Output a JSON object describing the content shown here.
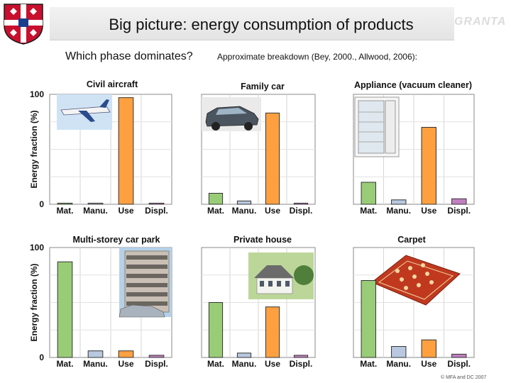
{
  "slide": {
    "title": "Big picture: energy consumption of products",
    "brand": "GRANTA",
    "question": "Which phase dominates?",
    "note": "Approximate breakdown  (Bey, 2000., Allwood, 2006):",
    "copyright": "© MFA  and DC 2007"
  },
  "colors": {
    "mat": "#99cc77",
    "manu": "#b9c8e0",
    "use": "#ffa040",
    "displ": "#c080c0"
  },
  "icons": [
    "university-crest-icon",
    "aircraft-photo",
    "car-photo",
    "refrigerator-photo",
    "car-park-photo",
    "house-photo",
    "carpet-photo"
  ],
  "chart_data": [
    {
      "type": "bar",
      "title": "Civil aircraft",
      "categories": [
        "Mat.",
        "Manu.",
        "Use",
        "Displ."
      ],
      "values": [
        1,
        1,
        97,
        1
      ],
      "ylabel": "Energy fraction (%)",
      "ylim": [
        0,
        100
      ],
      "yticks": [
        "0",
        "100"
      ],
      "grid": true
    },
    {
      "type": "bar",
      "title": "Family car",
      "categories": [
        "Mat.",
        "Manu.",
        "Use",
        "Displ."
      ],
      "values": [
        10,
        3,
        83,
        1
      ],
      "ylabel": "",
      "ylim": [
        0,
        100
      ],
      "yticks": [],
      "grid": true
    },
    {
      "type": "bar",
      "title": "Appliance (vacuum cleaner)",
      "categories": [
        "Mat.",
        "Manu.",
        "Use",
        "Displ."
      ],
      "values": [
        20,
        4,
        70,
        5
      ],
      "ylabel": "",
      "ylim": [
        0,
        100
      ],
      "yticks": [],
      "grid": true
    },
    {
      "type": "bar",
      "title": "Multi-storey car park",
      "categories": [
        "Mat.",
        "Manu.",
        "Use",
        "Displ."
      ],
      "values": [
        87,
        6,
        6,
        2
      ],
      "ylabel": "Energy fraction (%)",
      "ylim": [
        0,
        100
      ],
      "yticks": [
        "0",
        "100"
      ],
      "grid": true
    },
    {
      "type": "bar",
      "title": "Private house",
      "categories": [
        "Mat.",
        "Manu.",
        "Use",
        "Displ."
      ],
      "values": [
        50,
        4,
        46,
        2
      ],
      "ylabel": "",
      "ylim": [
        0,
        100
      ],
      "yticks": [],
      "grid": true
    },
    {
      "type": "bar",
      "title": "Carpet",
      "categories": [
        "Mat.",
        "Manu.",
        "Use",
        "Displ."
      ],
      "values": [
        70,
        10,
        16,
        3
      ],
      "ylabel": "",
      "ylim": [
        0,
        100
      ],
      "yticks": [],
      "grid": true
    }
  ]
}
